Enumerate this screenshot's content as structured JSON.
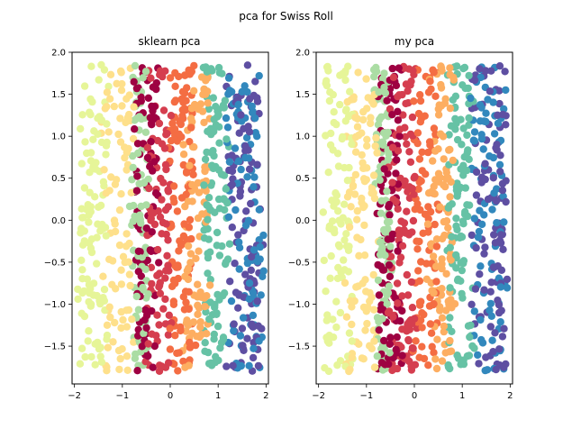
{
  "suptitle": "pca for Swiss Roll",
  "chart_data": [
    {
      "type": "scatter",
      "title": "sklearn pca",
      "xlabel": "",
      "ylabel": "",
      "xlim": [
        -2.05,
        2.05
      ],
      "ylim": [
        -1.95,
        2.0
      ],
      "xticks": [
        -2,
        -1,
        0,
        1,
        2
      ],
      "yticks": [
        -1.5,
        -1.0,
        -0.5,
        0.0,
        0.5,
        1.0,
        1.5,
        2.0
      ],
      "xtick_labels": [
        "−2",
        "−1",
        "0",
        "1",
        "2"
      ],
      "ytick_labels": [
        "−1.5",
        "−1.0",
        "−0.5",
        "0.0",
        "0.5",
        "1.0",
        "1.5",
        "2.0"
      ],
      "point_count": 1000,
      "color_bands": [
        {
          "x_range": [
            -1.9,
            -1.3
          ],
          "color": "#e6f598"
        },
        {
          "x_range": [
            -1.4,
            -0.8
          ],
          "color": "#fee08b"
        },
        {
          "x_range": [
            -0.8,
            -0.5
          ],
          "color": "#abdda4"
        },
        {
          "x_range": [
            -0.75,
            -0.3
          ],
          "color": "#9e0142"
        },
        {
          "x_range": [
            -0.5,
            0.0
          ],
          "color": "#d53e4f"
        },
        {
          "x_range": [
            0.0,
            0.5
          ],
          "color": "#f46d43"
        },
        {
          "x_range": [
            0.3,
            0.8
          ],
          "color": "#fdae61"
        },
        {
          "x_range": [
            0.7,
            1.2
          ],
          "color": "#66c2a5"
        },
        {
          "x_range": [
            1.2,
            1.9
          ],
          "color": "#3288bd"
        },
        {
          "x_range": [
            1.2,
            1.9
          ],
          "color": "#5e4fa2"
        }
      ]
    },
    {
      "type": "scatter",
      "title": "my pca",
      "xlabel": "",
      "ylabel": "",
      "xlim": [
        -2.05,
        2.05
      ],
      "ylim": [
        -1.95,
        2.0
      ],
      "xticks": [
        -2,
        -1,
        0,
        1,
        2
      ],
      "yticks": [
        -1.5,
        -1.0,
        -0.5,
        0.0,
        0.5,
        1.0,
        1.5,
        2.0
      ],
      "xtick_labels": [
        "−2",
        "−1",
        "0",
        "1",
        "2"
      ],
      "ytick_labels": [
        "−1.5",
        "−1.0",
        "−0.5",
        "0.0",
        "0.5",
        "1.0",
        "1.5",
        "2.0"
      ],
      "point_count": 1000,
      "color_bands": [
        {
          "x_range": [
            -1.9,
            -1.3
          ],
          "color": "#e6f598"
        },
        {
          "x_range": [
            -1.4,
            -0.8
          ],
          "color": "#fee08b"
        },
        {
          "x_range": [
            -0.8,
            -0.5
          ],
          "color": "#abdda4"
        },
        {
          "x_range": [
            -0.75,
            -0.3
          ],
          "color": "#9e0142"
        },
        {
          "x_range": [
            -0.5,
            0.0
          ],
          "color": "#d53e4f"
        },
        {
          "x_range": [
            0.0,
            0.5
          ],
          "color": "#f46d43"
        },
        {
          "x_range": [
            0.3,
            0.8
          ],
          "color": "#fdae61"
        },
        {
          "x_range": [
            0.7,
            1.2
          ],
          "color": "#66c2a5"
        },
        {
          "x_range": [
            1.2,
            1.9
          ],
          "color": "#3288bd"
        },
        {
          "x_range": [
            1.2,
            1.9
          ],
          "color": "#5e4fa2"
        }
      ]
    }
  ]
}
